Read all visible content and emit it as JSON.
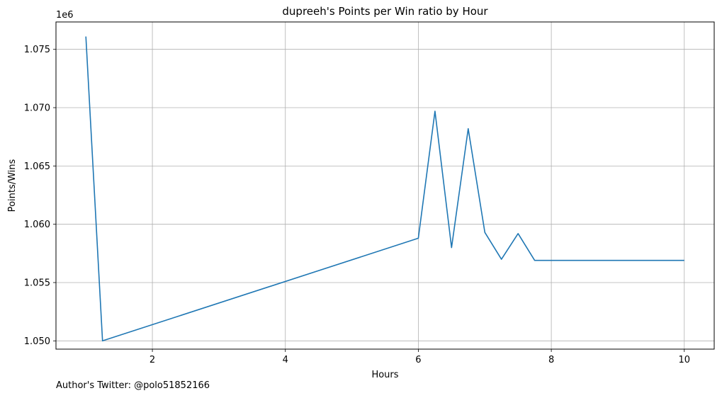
{
  "chart_data": {
    "type": "line",
    "title": "dupreeh's Points per Win ratio by Hour",
    "xlabel": "Hours",
    "ylabel": "Points/Wins",
    "y_offset_label": "1e6",
    "xlim": [
      0.55,
      10.45
    ],
    "ylim": [
      1.04929,
      1.07735
    ],
    "x_ticks": [
      2,
      4,
      6,
      8,
      10
    ],
    "x_tick_labels": [
      "2",
      "4",
      "6",
      "8",
      "10"
    ],
    "y_ticks": [
      1.05,
      1.055,
      1.06,
      1.065,
      1.07,
      1.075
    ],
    "y_tick_labels": [
      "1.050",
      "1.055",
      "1.060",
      "1.065",
      "1.070",
      "1.075"
    ],
    "grid": true,
    "series": [
      {
        "color": "#1f77b4",
        "x": [
          1.0,
          1.25,
          6.0,
          6.25,
          6.5,
          6.75,
          7.0,
          7.25,
          7.5,
          7.75,
          8.0,
          10.0
        ],
        "y": [
          1.0761,
          1.05,
          1.0588,
          1.0697,
          1.058,
          1.0682,
          1.0593,
          1.057,
          1.0592,
          1.0569,
          1.0569,
          1.0569
        ]
      }
    ]
  },
  "footer": {
    "text": "Author's Twitter: @polo51852166"
  }
}
